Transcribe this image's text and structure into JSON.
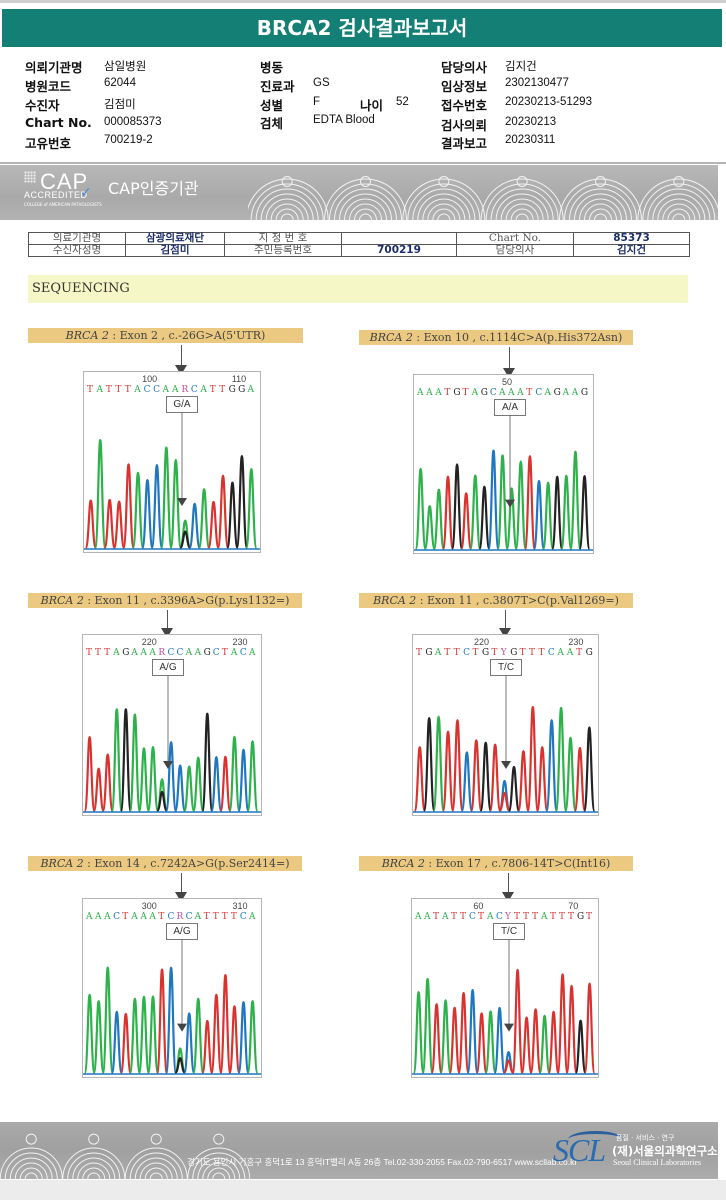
{
  "header": {
    "title": "BRCA2 검사결과보고서",
    "fields": [
      {
        "label": "의뢰기관명",
        "value": "삼일병원"
      },
      {
        "label": "병원코드",
        "value": "62044"
      },
      {
        "label": "수진자",
        "value": "김점미"
      },
      {
        "label": "Chart No.",
        "value": "000085373"
      },
      {
        "label": "고유번호",
        "value": "700219-2"
      },
      {
        "label": "병동",
        "value": ""
      },
      {
        "label": "진료과",
        "value": "GS"
      },
      {
        "label": "성별",
        "value": "F"
      },
      {
        "label": "나이",
        "value": "52"
      },
      {
        "label": "검체",
        "value": "EDTA Blood"
      },
      {
        "label": "담당의사",
        "value": "김지건"
      },
      {
        "label": "임상정보",
        "value": "2302130477"
      },
      {
        "label": "접수번호",
        "value": "20230213-51293"
      },
      {
        "label": "검사의뢰",
        "value": "20230213"
      },
      {
        "label": "결과보고",
        "value": "20230311"
      }
    ]
  },
  "cap_banner": {
    "logo_big": "CAP",
    "logo_accredited": "ACCREDITED",
    "logo_small": "COLLEGE of AMERICAN PATHOLOGISTS",
    "text": "CAP인증기관"
  },
  "patient_table": {
    "row1": [
      "의료기관명",
      "삼광의료재단",
      "지 정 번 호",
      "",
      "Chart No.",
      "85373"
    ],
    "row2": [
      "수신자성명",
      "김점미",
      "주민등록번호",
      "700219",
      "담당의사",
      "김지건"
    ]
  },
  "section_title": "SEQUENCING",
  "colors": {
    "A": "#2db14a",
    "C": "#1f77c0",
    "G": "#222222",
    "T": "#d8332f",
    "R": "#c0509a",
    "Y": "#c0509a"
  },
  "panels": [
    {
      "gene": "BRCA 2",
      "label": " : Exon 2 , c.-26G>A(5'UTR)",
      "ticks": [
        "100",
        "110"
      ],
      "sequence": "TATTTACCAARCATTGGA",
      "call": "G/A"
    },
    {
      "gene": "BRCA 2",
      "label": " : Exon 10 , c.1114C>A(p.His372Asn)",
      "ticks": [
        "50"
      ],
      "sequence": "AAATGTAGCAAATCAGAAG",
      "call": "A/A"
    },
    {
      "gene": "BRCA 2",
      "label": " : Exon 11 , c.3396A>G(p.Lys1132=)",
      "ticks": [
        "220",
        "230"
      ],
      "sequence": "TTTAGAAARCCAAGCTACA",
      "call": "A/G"
    },
    {
      "gene": "BRCA 2",
      "label": " : Exon 11 , c.3807T>C(p.Val1269=)",
      "ticks": [
        "220",
        "230"
      ],
      "sequence": "TGATTCTGTYGTTTCAATG",
      "call": "T/C"
    },
    {
      "gene": "BRCA 2",
      "label": " : Exon 14 , c.7242A>G(p.Ser2414=)",
      "ticks": [
        "300",
        "310"
      ],
      "sequence": "AAACTAAATCRCATTTTCA",
      "call": "A/G"
    },
    {
      "gene": "BRCA 2",
      "label": " : Exon 17 , c.7806-14T>C(Int16)",
      "ticks": [
        "60",
        "70"
      ],
      "sequence": "AATATTCTACYTTTATTTGT",
      "call": "T/C"
    }
  ],
  "footer": {
    "address": "경기도 용인시 기흥구 흥덕1로 13 흥덕IT밸리 A동 26층  Tel.02-330-2055  Fax.02-790-6517  www.scllab.co.kr",
    "logo": "SCL",
    "slogan": "품질 · 서비스 · 연구",
    "org_ko": "(재)서울의과학연구소",
    "org_en": "Seoul Clinical Laboratories"
  }
}
